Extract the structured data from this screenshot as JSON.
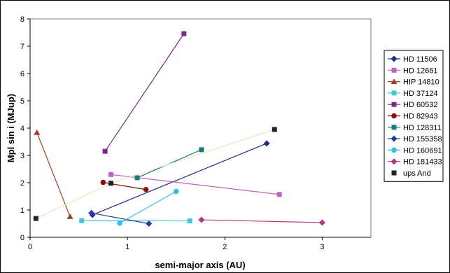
{
  "chart_data": {
    "type": "scatter",
    "xlabel": "semi-major axis (AU)",
    "ylabel": "Mpl sin i (MJup)",
    "xlim": [
      0,
      3.5
    ],
    "ylim": [
      0,
      8
    ],
    "x_ticks": [
      "0",
      "1",
      "2",
      "3"
    ],
    "y_ticks": [
      "0",
      "1",
      "2",
      "3",
      "4",
      "5",
      "6",
      "7",
      "8"
    ],
    "grid": false,
    "legend_position": "right",
    "series": [
      {
        "name": "HD 11506",
        "color": "#1f2f8a",
        "marker": "diamond",
        "points": [
          [
            0.64,
            0.82
          ],
          [
            2.43,
            3.44
          ]
        ]
      },
      {
        "name": "HD 12661",
        "color": "#c060b8",
        "marker": "square",
        "points": [
          [
            0.83,
            2.3
          ],
          [
            2.56,
            1.57
          ]
        ]
      },
      {
        "name": "HIP 14810",
        "color": "#a0402a",
        "marker": "triangle",
        "points": [
          [
            0.07,
            3.84
          ],
          [
            0.41,
            0.76
          ]
        ]
      },
      {
        "name": "HD 37124",
        "color": "#40c8d8",
        "marker": "square",
        "points": [
          [
            0.53,
            0.61
          ],
          [
            1.64,
            0.6
          ]
        ]
      },
      {
        "name": "HD 60532",
        "color": "#7a2a88",
        "marker": "square",
        "points": [
          [
            0.77,
            3.15
          ],
          [
            1.58,
            7.46
          ]
        ]
      },
      {
        "name": "HD 82943",
        "color": "#8a1010",
        "marker": "circle",
        "points": [
          [
            0.75,
            2.01
          ],
          [
            1.19,
            1.75
          ]
        ]
      },
      {
        "name": "HD 128311",
        "color": "#1a7a78",
        "marker": "square",
        "points": [
          [
            1.1,
            2.18
          ],
          [
            1.76,
            3.21
          ]
        ]
      },
      {
        "name": "HD 155358",
        "color": "#2a3aa0",
        "marker": "diamond",
        "points": [
          [
            0.63,
            0.89
          ],
          [
            1.22,
            0.5
          ]
        ]
      },
      {
        "name": "HD 160691",
        "color": "#30c0f0",
        "marker": "circle",
        "points": [
          [
            0.92,
            0.52
          ],
          [
            1.5,
            1.68
          ]
        ]
      },
      {
        "name": "HD 181433",
        "color": "#b03880",
        "marker": "diamond",
        "points": [
          [
            1.76,
            0.64
          ],
          [
            3.0,
            0.54
          ]
        ]
      },
      {
        "name": "ups And",
        "color": "#222222",
        "marker": "square",
        "points": [
          [
            0.06,
            0.69
          ],
          [
            0.83,
            1.98
          ],
          [
            2.51,
            3.95
          ]
        ],
        "line_color": "#e6e6c8"
      }
    ]
  }
}
